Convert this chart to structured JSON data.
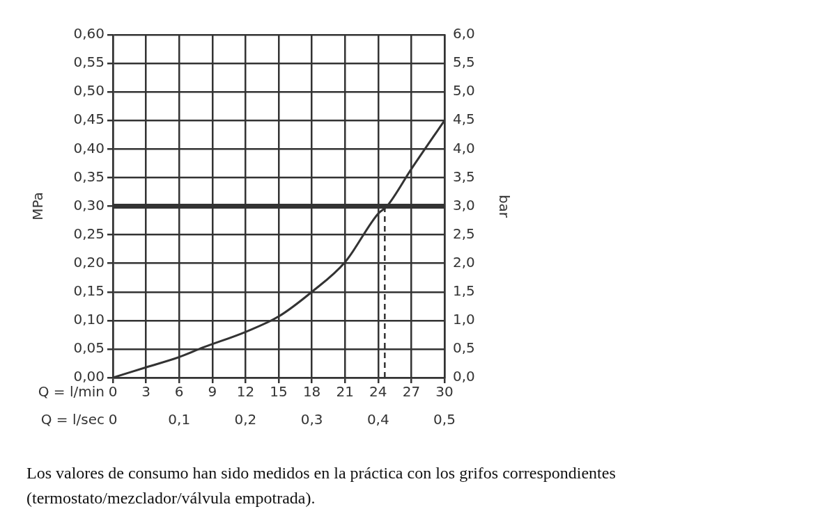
{
  "chart_data": {
    "type": "line",
    "xlabel": "Q = l/min",
    "x2label": "Q = l/sec",
    "ylabel": "MPa",
    "y2label": "bar",
    "x": [
      0,
      3,
      6,
      8.2,
      12,
      15,
      18,
      21,
      24,
      24.8,
      27,
      30
    ],
    "series": [
      {
        "color": "#333333",
        "values": [
          0,
          0.018,
          0.036,
          0.053,
          0.08,
          0.107,
          0.15,
          0.202,
          0.287,
          0.3,
          0.365,
          0.45
        ]
      }
    ],
    "xlim": [
      0,
      30
    ],
    "xticks": [
      0,
      3,
      6,
      9,
      12,
      15,
      18,
      21,
      24,
      27,
      30
    ],
    "x2lim": [
      0,
      0.5
    ],
    "x2ticks": [
      0,
      {
        "value": 0.1,
        "label": "0,1"
      },
      {
        "value": 0.2,
        "label": "0,2"
      },
      {
        "value": 0.3,
        "label": "0,3"
      },
      {
        "value": 0.4,
        "label": "0,4"
      },
      {
        "value": 0.5,
        "label": "0,5"
      }
    ],
    "ylim": [
      0,
      0.6
    ],
    "yticks": [
      {
        "value": 0,
        "label": "0,00"
      },
      {
        "value": 0.05,
        "label": "0,05"
      },
      {
        "value": 0.1,
        "label": "0,10"
      },
      {
        "value": 0.15,
        "label": "0,15"
      },
      {
        "value": 0.2,
        "label": "0,20"
      },
      {
        "value": 0.25,
        "label": "0,25"
      },
      {
        "value": 0.3,
        "label": "0,30"
      },
      {
        "value": 0.35,
        "label": "0,35"
      },
      {
        "value": 0.4,
        "label": "0,40"
      },
      {
        "value": 0.45,
        "label": "0,45"
      },
      {
        "value": 0.5,
        "label": "0,50"
      },
      {
        "value": 0.55,
        "label": "0,55"
      },
      {
        "value": 0.6,
        "label": "0,60"
      }
    ],
    "y2lim": [
      0,
      6
    ],
    "y2ticks": [
      {
        "value": 0,
        "label": "0,0"
      },
      {
        "value": 0.5,
        "label": "0,5"
      },
      {
        "value": 1,
        "label": "1,0"
      },
      {
        "value": 1.5,
        "label": "1,5"
      },
      {
        "value": 2,
        "label": "2,0"
      },
      {
        "value": 2.5,
        "label": "2,5"
      },
      {
        "value": 3,
        "label": "3,0"
      },
      {
        "value": 3.5,
        "label": "3,5"
      },
      {
        "value": 4,
        "label": "4,0"
      },
      {
        "value": 4.5,
        "label": "4,5"
      },
      {
        "value": 5,
        "label": "5,0"
      },
      {
        "value": 5.5,
        "label": "5,5"
      },
      {
        "value": 6,
        "label": "6,0"
      }
    ],
    "ref_lines": [
      {
        "axis": "y",
        "value": 0.3,
        "color": "#333333",
        "line_style": "solid"
      },
      {
        "axis": "x",
        "value": 24.6,
        "color": "#333333",
        "line_style": "dashed"
      }
    ],
    "grid": true,
    "legend": false,
    "marker": "none",
    "line_style": "solid",
    "annotations": [
      "Los valores de consumo han sido medidos en la práctica con los grifos correspondientes (termostato/mezclador/válvula empotrada)."
    ]
  }
}
